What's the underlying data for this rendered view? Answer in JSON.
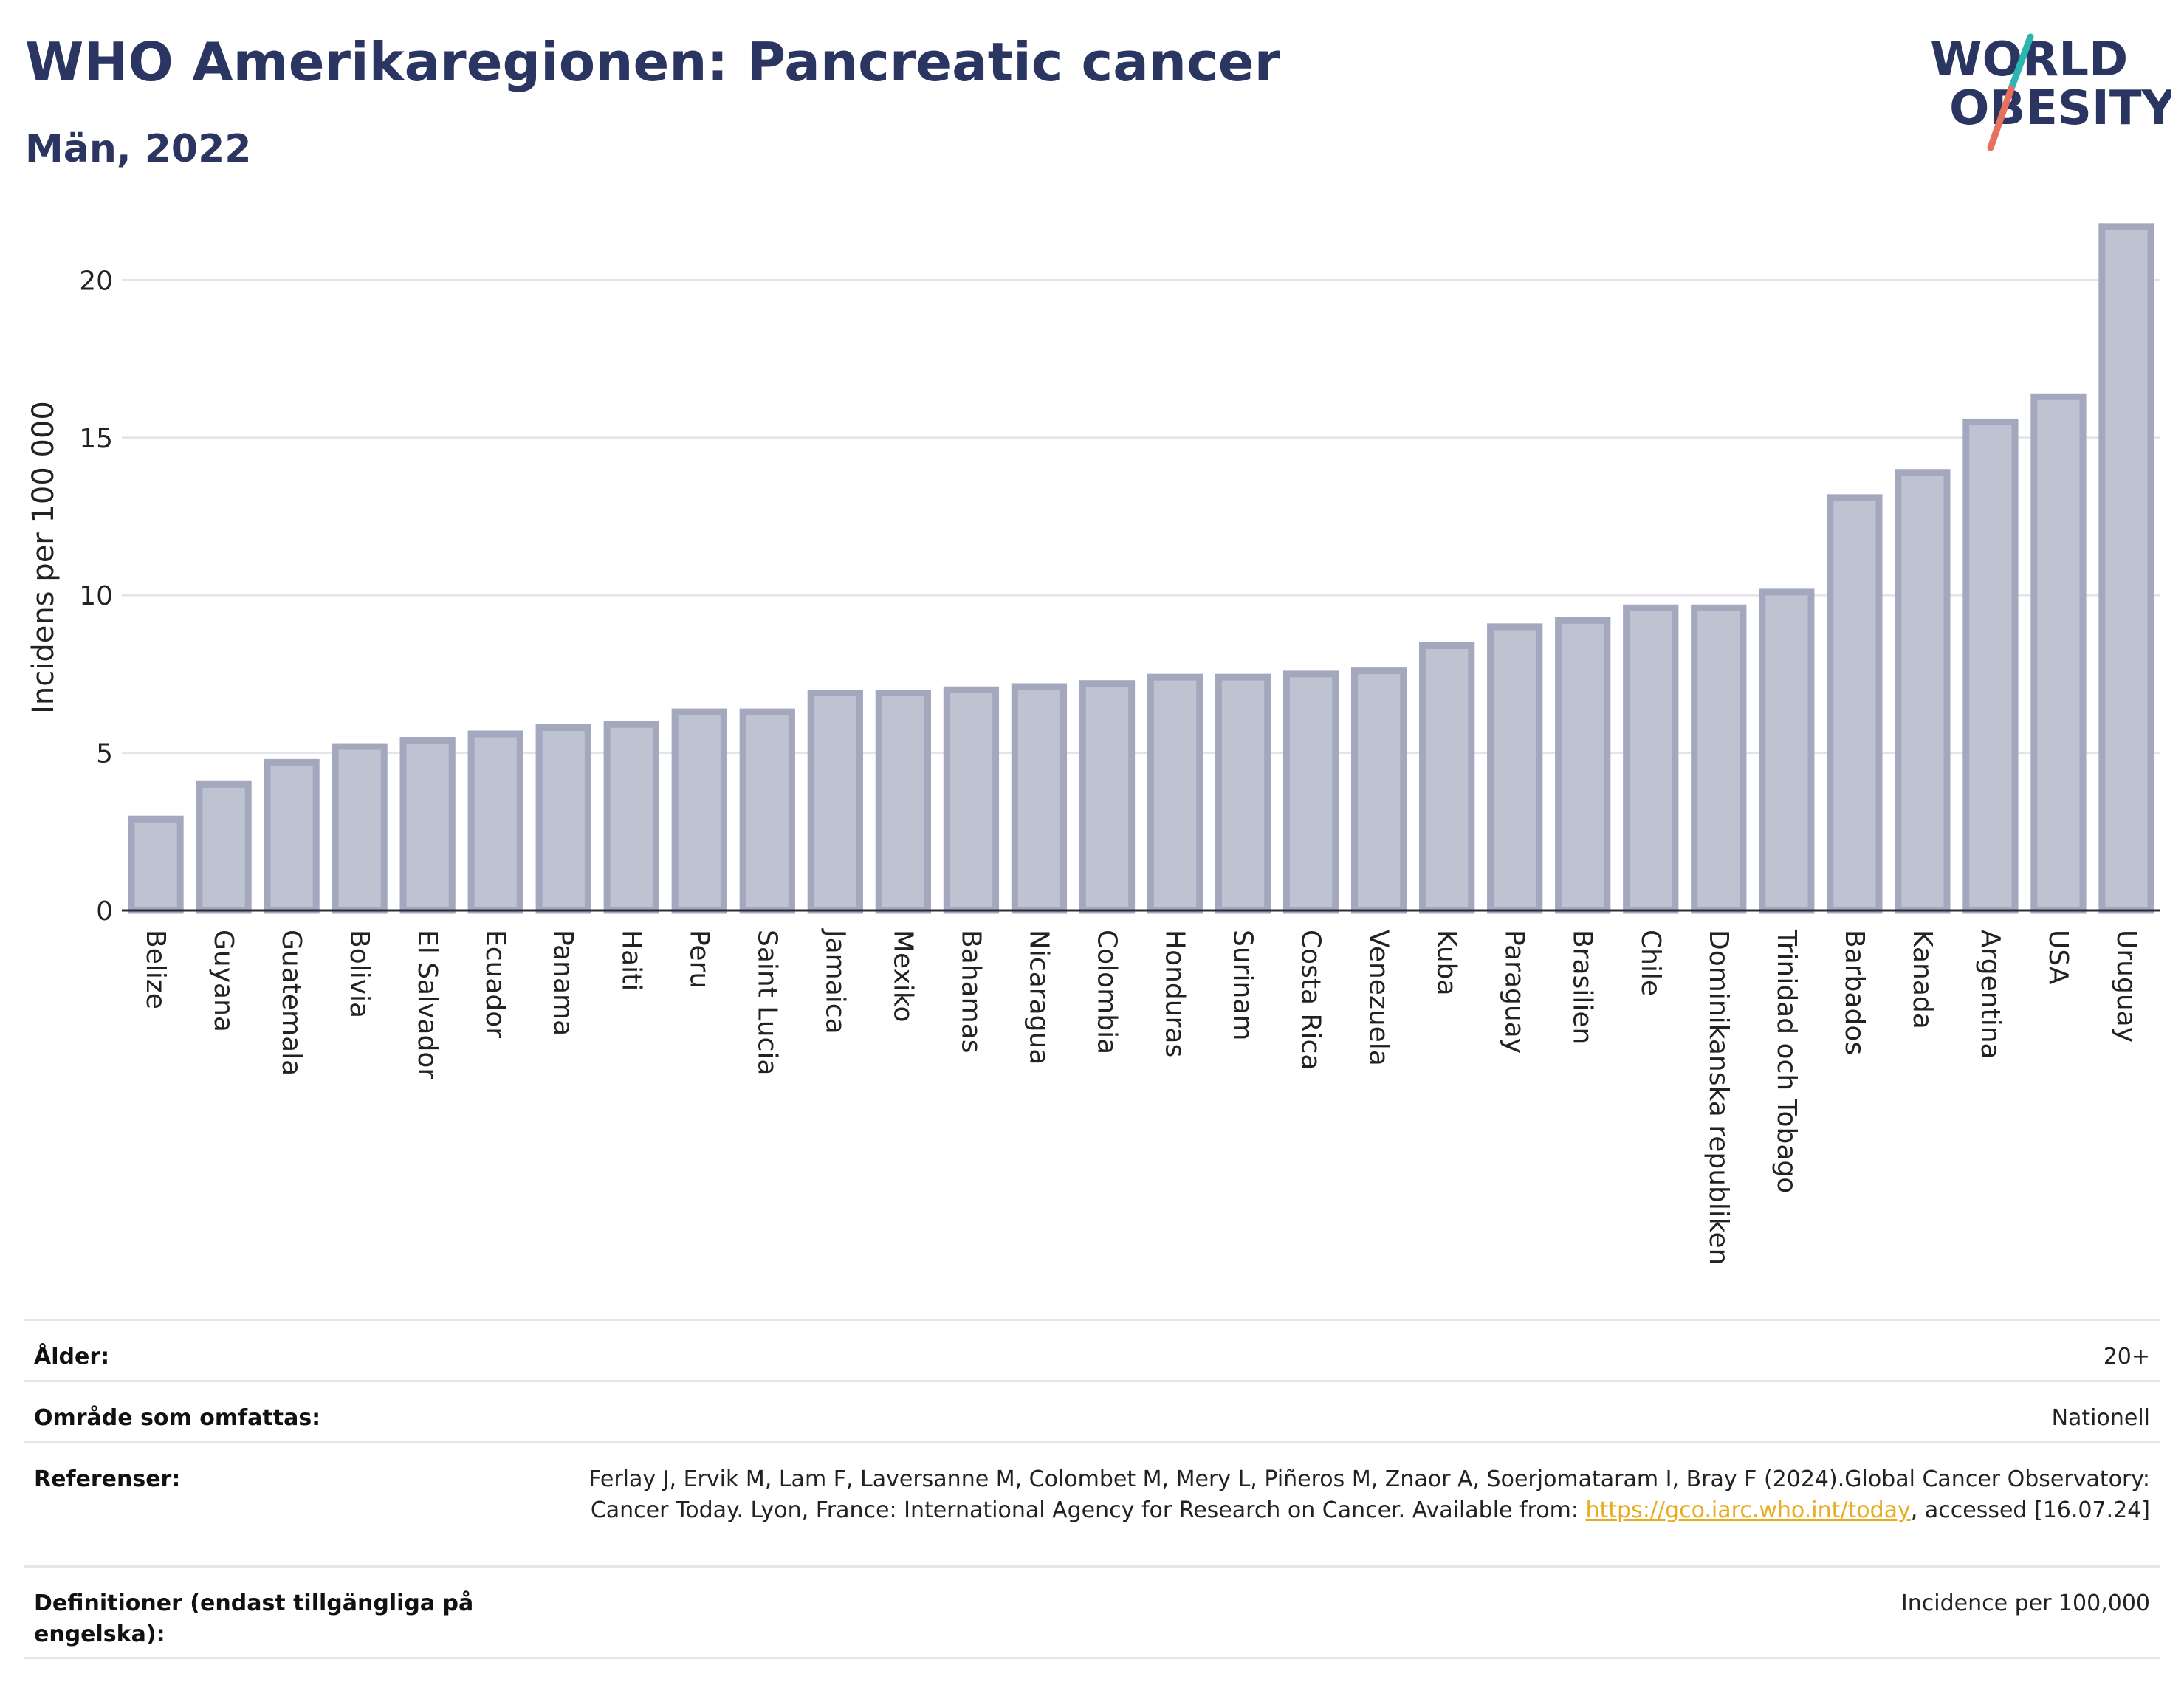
{
  "header": {
    "title": "WHO Amerikaregionen: Pancreatic cancer",
    "subtitle": "Män, 2022"
  },
  "logo": {
    "line1": "WORLD",
    "line2": "OBESITY",
    "colors": {
      "text": "#2b3561",
      "slash_top": "#2bb5b0",
      "slash_bottom": "#e8705f"
    }
  },
  "chart_data": {
    "type": "bar",
    "ylabel": "Incidens per 100 000",
    "ylim": [
      0,
      22
    ],
    "yticks": [
      0,
      5,
      10,
      15,
      20
    ],
    "grid": true,
    "categories": [
      "Belize",
      "Guyana",
      "Guatemala",
      "Bolivia",
      "El Salvador",
      "Ecuador",
      "Panama",
      "Haiti",
      "Peru",
      "Saint Lucia",
      "Jamaica",
      "Mexiko",
      "Bahamas",
      "Nicaragua",
      "Colombia",
      "Honduras",
      "Surinam",
      "Costa Rica",
      "Venezuela",
      "Kuba",
      "Paraguay",
      "Brasilien",
      "Chile",
      "Dominikanska republiken",
      "Trinidad och Tobago",
      "Barbados",
      "Kanada",
      "Argentina",
      "USA",
      "Uruguay"
    ],
    "values": [
      2.9,
      4.0,
      4.7,
      5.2,
      5.4,
      5.6,
      5.8,
      5.9,
      6.3,
      6.3,
      6.9,
      6.9,
      7.0,
      7.1,
      7.2,
      7.4,
      7.4,
      7.5,
      7.6,
      8.4,
      9.0,
      9.2,
      9.6,
      9.6,
      10.1,
      13.1,
      13.9,
      15.5,
      16.3,
      21.7
    ],
    "colors": {
      "bar_fill": "#bfc2d0",
      "bar_edge": "#a3a8be"
    }
  },
  "info": {
    "age": {
      "label": "Ålder:",
      "value": "20+"
    },
    "coverage": {
      "label": "Område som omfattas:",
      "value": "Nationell"
    },
    "references": {
      "label": "Referenser:",
      "text1": "Ferlay J, Ervik M, Lam F, Laversanne M, Colombet M, Mery L, Piñeros M, Znaor A, Soerjomataram I, Bray F (2024).Global Cancer Observatory: Cancer Today. Lyon, France: International Agency for Research on Cancer. Available from: ",
      "link": "https://gco.iarc.who.int/today",
      "text2": ", accessed [16.07.24]"
    },
    "definitions": {
      "label": "Definitioner (endast tillgängliga på engelska):",
      "value": "Incidence per 100,000"
    }
  }
}
